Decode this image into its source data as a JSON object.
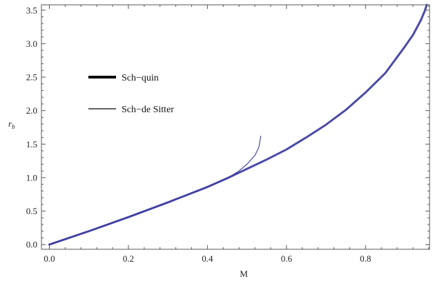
{
  "chart_data": {
    "type": "line",
    "xlabel": "M",
    "ylabel_base": "r",
    "ylabel_sub": "b",
    "xlim": [
      -0.02,
      0.962
    ],
    "ylim": [
      -0.07,
      3.58
    ],
    "x_ticks_major": [
      0.0,
      0.2,
      0.4,
      0.6,
      0.8
    ],
    "x_tick_labels": [
      "0.0",
      "0.2",
      "0.4",
      "0.6",
      "0.8"
    ],
    "y_ticks_major": [
      0.0,
      0.5,
      1.0,
      1.5,
      2.0,
      2.5,
      3.0,
      3.5
    ],
    "y_tick_labels": [
      "0.0",
      "0.5",
      "1.0",
      "1.5",
      "2.0",
      "2.5",
      "3.0",
      "3.5"
    ],
    "grid": false,
    "legend": {
      "placement": "upper-left",
      "entries": [
        {
          "label": "Sch−quin",
          "style": "thick"
        },
        {
          "label": "Sch−de Sitter",
          "style": "thin"
        }
      ]
    },
    "series": [
      {
        "name": "Sch−quin",
        "color": "#4a4aa6",
        "x": [
          0.0,
          0.1,
          0.2,
          0.3,
          0.4,
          0.45,
          0.5,
          0.55,
          0.6,
          0.65,
          0.7,
          0.75,
          0.8,
          0.85,
          0.9,
          0.92,
          0.94,
          0.95,
          0.955
        ],
        "y": [
          0.0,
          0.2,
          0.41,
          0.63,
          0.86,
          0.99,
          1.13,
          1.27,
          1.42,
          1.6,
          1.79,
          2.01,
          2.27,
          2.56,
          2.96,
          3.13,
          3.35,
          3.49,
          3.58
        ]
      },
      {
        "name": "Sch−de Sitter",
        "color": "#3a3aa0",
        "x": [
          0.0,
          0.1,
          0.2,
          0.3,
          0.4,
          0.45,
          0.48,
          0.5,
          0.52,
          0.53,
          0.535
        ],
        "y": [
          0.0,
          0.2,
          0.41,
          0.63,
          0.86,
          0.99,
          1.1,
          1.2,
          1.33,
          1.45,
          1.62
        ]
      }
    ]
  }
}
